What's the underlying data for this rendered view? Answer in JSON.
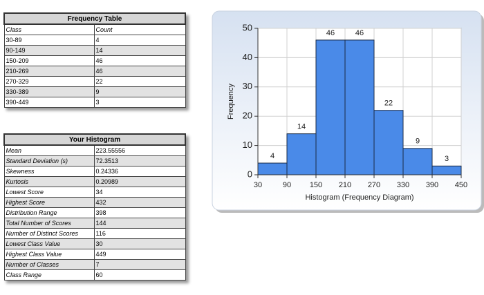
{
  "frequency_table": {
    "title": "Frequency Table",
    "header": [
      "Class",
      "Count"
    ],
    "rows": [
      [
        "30-89",
        4
      ],
      [
        "90-149",
        14
      ],
      [
        "150-209",
        46
      ],
      [
        "210-269",
        46
      ],
      [
        "270-329",
        22
      ],
      [
        "330-389",
        9
      ],
      [
        "390-449",
        3
      ]
    ]
  },
  "summary_table": {
    "title": "Your Histogram",
    "rows": [
      [
        "Mean",
        223.55556
      ],
      [
        "Standard Deviation (s)",
        72.3513
      ],
      [
        "Skewness",
        0.24336
      ],
      [
        "Kurtosis",
        0.20989
      ],
      [
        "Lowest Score",
        34
      ],
      [
        "Highest Score",
        432
      ],
      [
        "Distribution Range",
        398
      ],
      [
        "Total Number of Scores",
        144
      ],
      [
        "Number of Distinct Scores",
        116
      ],
      [
        "Lowest Class Value",
        30
      ],
      [
        "Highest Class Value",
        449
      ],
      [
        "Number of Classes",
        7
      ],
      [
        "Class Range",
        60
      ]
    ]
  },
  "chart_data": {
    "type": "histogram",
    "x_label": "Histogram (Frequency Diagram)",
    "y_label": "Frequency",
    "bins": [
      30,
      90,
      150,
      210,
      270,
      330,
      390,
      450
    ],
    "values": [
      4,
      14,
      46,
      46,
      22,
      9,
      3
    ],
    "color": "#4a8ae8",
    "xlim": [
      30,
      450
    ],
    "xticks": [
      30,
      90,
      150,
      210,
      270,
      330,
      390,
      450
    ],
    "ylim": [
      0,
      50
    ],
    "yticks": [
      0,
      10,
      20,
      30,
      40,
      50
    ],
    "grid": true
  }
}
